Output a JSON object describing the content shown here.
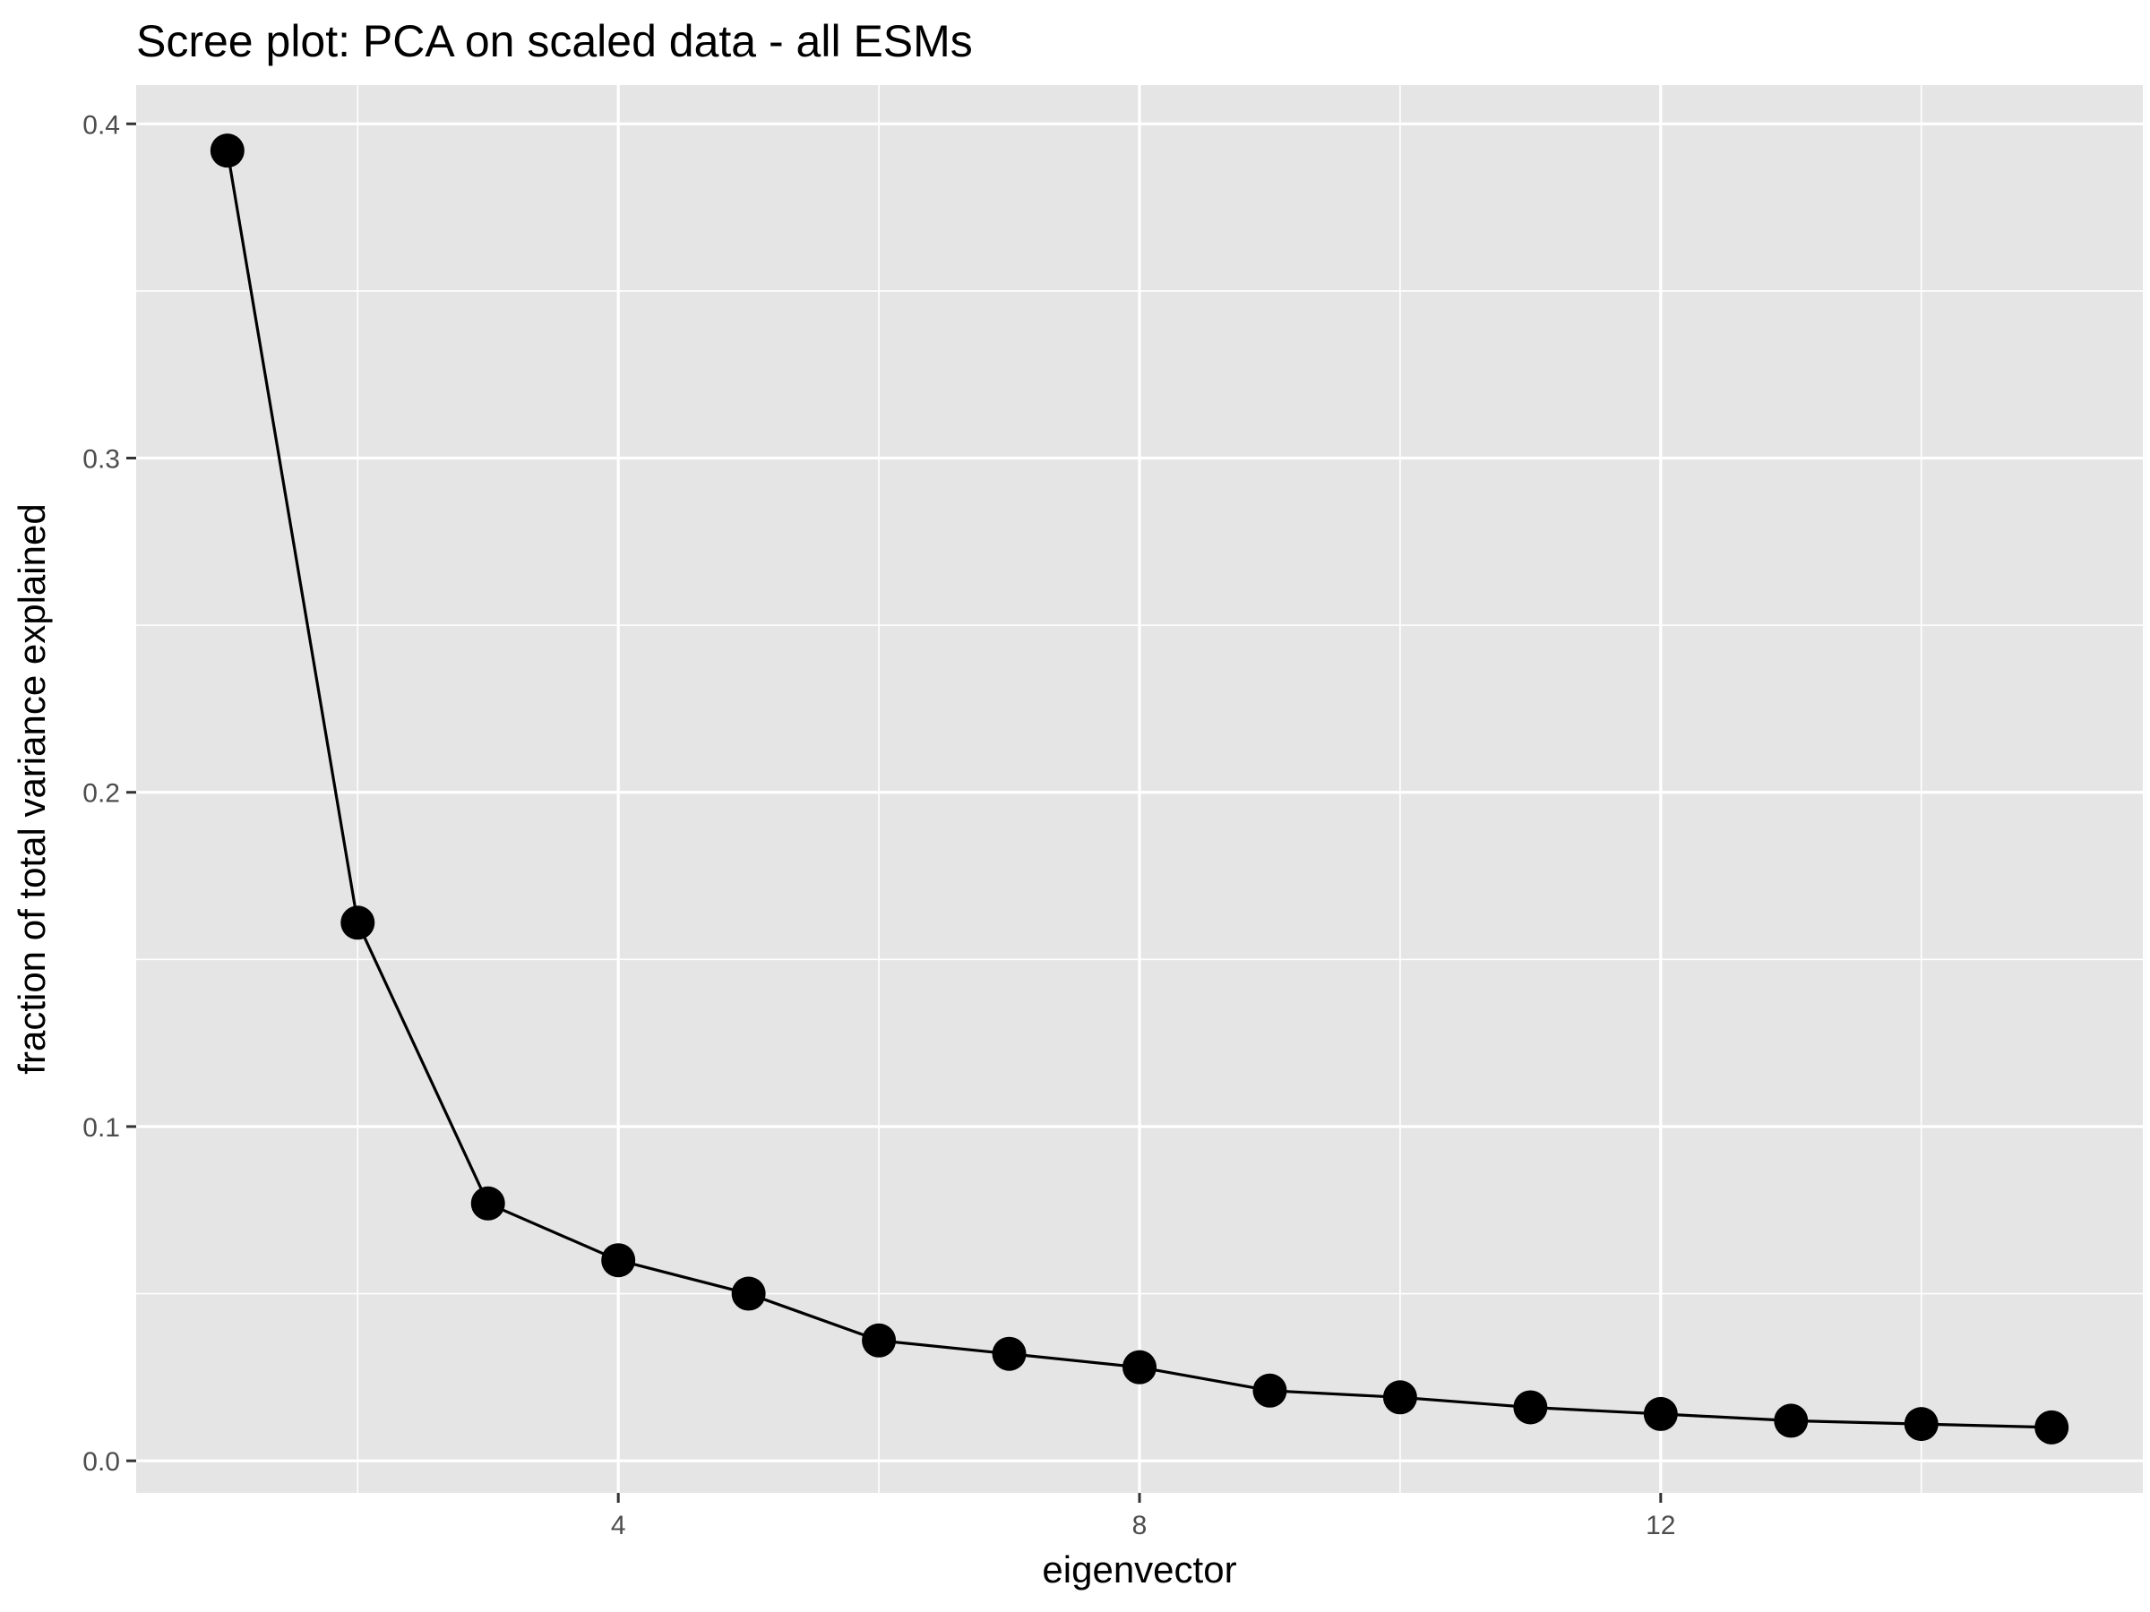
{
  "chart_data": {
    "type": "line",
    "title": "Scree plot: PCA on scaled data - all ESMs",
    "xlabel": "eigenvector",
    "ylabel": "fraction of total variance explained",
    "x": [
      1,
      2,
      3,
      4,
      5,
      6,
      7,
      8,
      9,
      10,
      11,
      12,
      13,
      14,
      15
    ],
    "series": [
      {
        "values": [
          0.392,
          0.161,
          0.077,
          0.06,
          0.05,
          0.036,
          0.032,
          0.028,
          0.021,
          0.019,
          0.016,
          0.014,
          0.012,
          0.011,
          0.01
        ]
      }
    ],
    "xlim": [
      0.3,
      15.7
    ],
    "ylim": [
      -0.0096,
      0.4116
    ],
    "x_ticks": [
      4,
      8,
      12
    ],
    "x_tick_labels": [
      "4",
      "8",
      "12"
    ],
    "x_minor_ticks": [
      2,
      6,
      10,
      14
    ],
    "y_ticks": [
      0.0,
      0.1,
      0.2,
      0.3,
      0.4
    ],
    "y_tick_labels": [
      "0.0",
      "0.1",
      "0.2",
      "0.3",
      "0.4"
    ],
    "y_minor_ticks": [
      0.05,
      0.15,
      0.25,
      0.35
    ],
    "grid": true,
    "colors": {
      "panel_background": "#e5e5e5",
      "grid": "#ffffff",
      "line": "#000000",
      "point": "#000000",
      "tick_label": "#4d4d4d",
      "tick_mark": "#333333"
    }
  }
}
